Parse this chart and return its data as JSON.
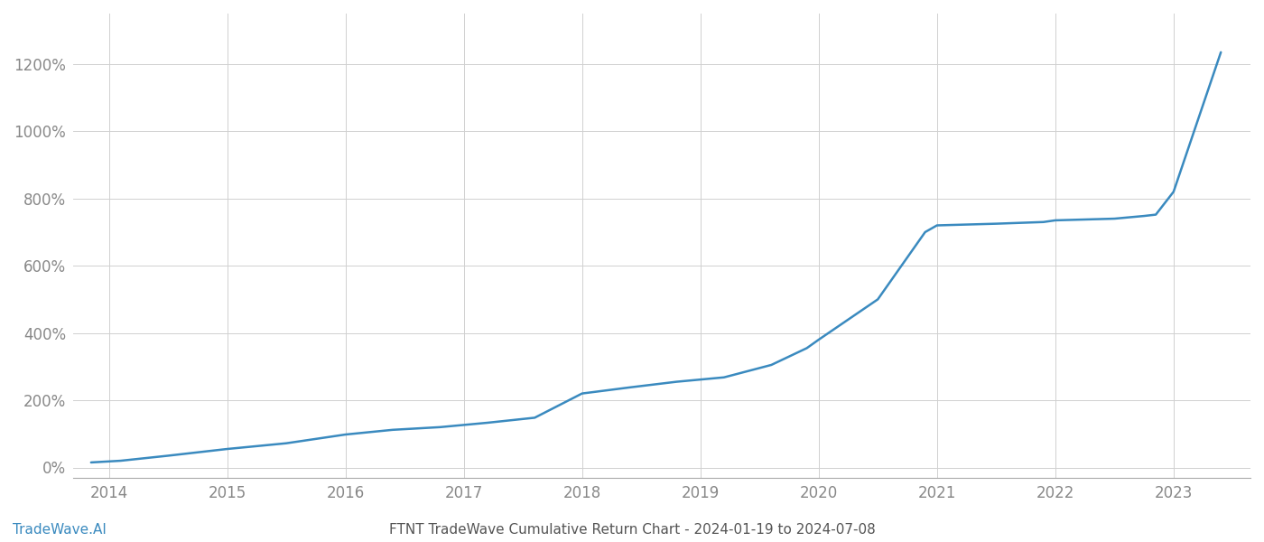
{
  "title": "FTNT TradeWave Cumulative Return Chart - 2024-01-19 to 2024-07-08",
  "watermark": "TradeWave.AI",
  "line_color": "#3a8abf",
  "background_color": "#ffffff",
  "grid_color": "#d0d0d0",
  "x_years": [
    2014,
    2015,
    2016,
    2017,
    2018,
    2019,
    2020,
    2021,
    2022,
    2023
  ],
  "x_values": [
    2013.85,
    2014.1,
    2014.5,
    2015.0,
    2015.5,
    2016.0,
    2016.4,
    2016.8,
    2017.2,
    2017.6,
    2018.0,
    2018.4,
    2018.8,
    2019.2,
    2019.6,
    2019.9,
    2020.0,
    2020.5,
    2020.9,
    2021.0,
    2021.5,
    2021.9,
    2022.0,
    2022.5,
    2022.75,
    2022.85,
    2023.0,
    2023.4
  ],
  "y_values": [
    15,
    20,
    35,
    55,
    72,
    98,
    112,
    120,
    133,
    148,
    220,
    238,
    255,
    268,
    305,
    355,
    380,
    500,
    700,
    720,
    725,
    730,
    735,
    740,
    748,
    752,
    820,
    1235
  ],
  "ylim": [
    -30,
    1350
  ],
  "yticks": [
    0,
    200,
    400,
    600,
    800,
    1000,
    1200
  ],
  "xlim": [
    2013.7,
    2023.65
  ],
  "title_fontsize": 11,
  "watermark_fontsize": 11,
  "tick_fontsize": 12,
  "axis_label_color": "#555555",
  "tick_label_color": "#888888",
  "line_width": 1.8
}
